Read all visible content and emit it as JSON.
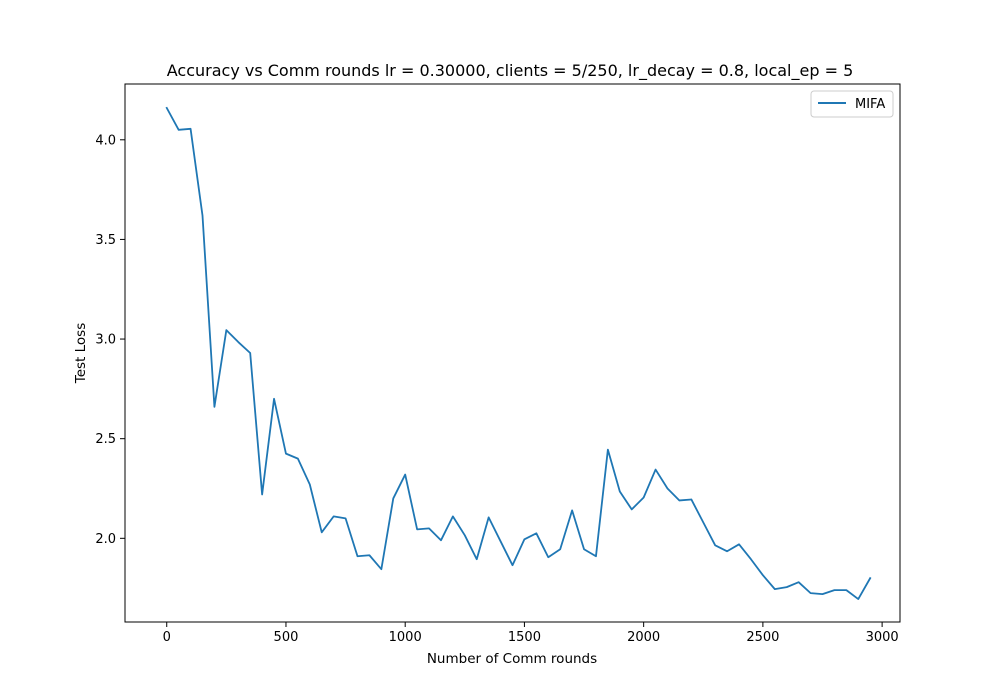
{
  "chart_data": {
    "type": "line",
    "title": "Accuracy vs Comm rounds lr = 0.30000, clients = 5/250, lr_decay = 0.8, local_ep = 5",
    "xlabel": "Number of Comm rounds",
    "ylabel": "Test Loss",
    "xlim": [
      -175,
      3075
    ],
    "ylim": [
      1.58,
      4.28
    ],
    "xticks": [
      0,
      500,
      1000,
      1500,
      2000,
      2500,
      3000
    ],
    "yticks": [
      2.0,
      2.5,
      3.0,
      3.5,
      4.0
    ],
    "xtick_labels": [
      "0",
      "500",
      "1000",
      "1500",
      "2000",
      "2500",
      "3000"
    ],
    "ytick_labels": [
      "2.0",
      "2.5",
      "3.0",
      "3.5",
      "4.0"
    ],
    "grid": false,
    "legend_position": "top-right",
    "series": [
      {
        "name": "MIFA",
        "color": "#1f77b4",
        "x": [
          0,
          50,
          100,
          150,
          200,
          250,
          300,
          350,
          400,
          450,
          500,
          550,
          600,
          650,
          700,
          750,
          800,
          850,
          900,
          950,
          1000,
          1050,
          1100,
          1150,
          1200,
          1250,
          1300,
          1350,
          1400,
          1450,
          1500,
          1550,
          1600,
          1650,
          1700,
          1750,
          1800,
          1850,
          1900,
          1950,
          2000,
          2050,
          2100,
          2150,
          2200,
          2250,
          2300,
          2350,
          2400,
          2450,
          2500,
          2550,
          2600,
          2650,
          2700,
          2750,
          2800,
          2850,
          2900,
          2950
        ],
        "y": [
          4.16,
          4.05,
          4.055,
          3.62,
          2.66,
          3.045,
          2.985,
          2.93,
          2.22,
          2.7,
          2.425,
          2.4,
          2.27,
          2.03,
          2.11,
          2.1,
          1.91,
          1.915,
          1.845,
          2.2,
          2.32,
          2.045,
          2.05,
          1.99,
          2.11,
          2.015,
          1.895,
          2.105,
          1.985,
          1.865,
          1.995,
          2.025,
          1.905,
          1.945,
          2.14,
          1.945,
          1.91,
          2.445,
          2.235,
          2.145,
          2.205,
          2.345,
          2.25,
          2.19,
          2.195,
          2.08,
          1.965,
          1.935,
          1.97,
          1.895,
          1.815,
          1.745,
          1.755,
          1.78,
          1.725,
          1.72,
          1.74,
          1.74,
          1.695,
          1.8
        ]
      }
    ]
  }
}
